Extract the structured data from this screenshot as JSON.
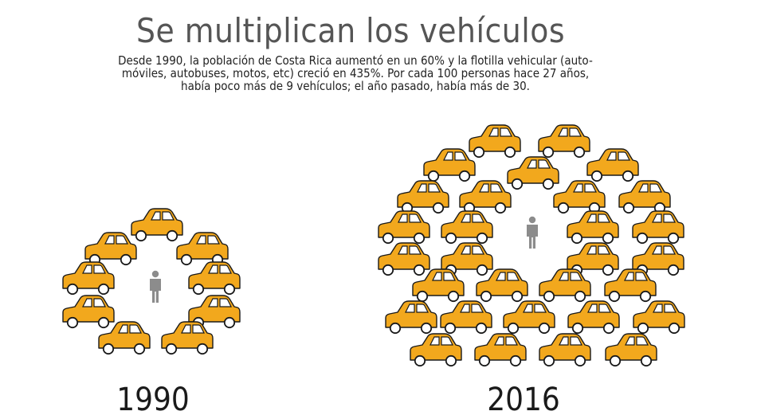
{
  "title": "Se multiplican los vehículos",
  "subtitle_lines": [
    "Desde 1990, la población de Costa Rica aumentó en un 60% y la flotilla vehicular (auto-",
    "móviles, autobuses, motos, etc) creció en 435%. Por cada 100 personas hace 27 años,",
    "había poco más de 9 vehículos; el año pasado, había más de 30."
  ],
  "colors": {
    "car_body": "#f2a81d",
    "car_outline": "#1a1a1a",
    "person": "#8c8c8c"
  },
  "icons": {
    "car": "car-icon",
    "person": "person-icon"
  },
  "chart_data": {
    "type": "pictogram",
    "unit": "vehicles per 100 people",
    "panels": [
      {
        "label": "1990",
        "cars": 9,
        "people": 1
      },
      {
        "label": "2016",
        "cars": 30,
        "people": 1
      }
    ]
  }
}
